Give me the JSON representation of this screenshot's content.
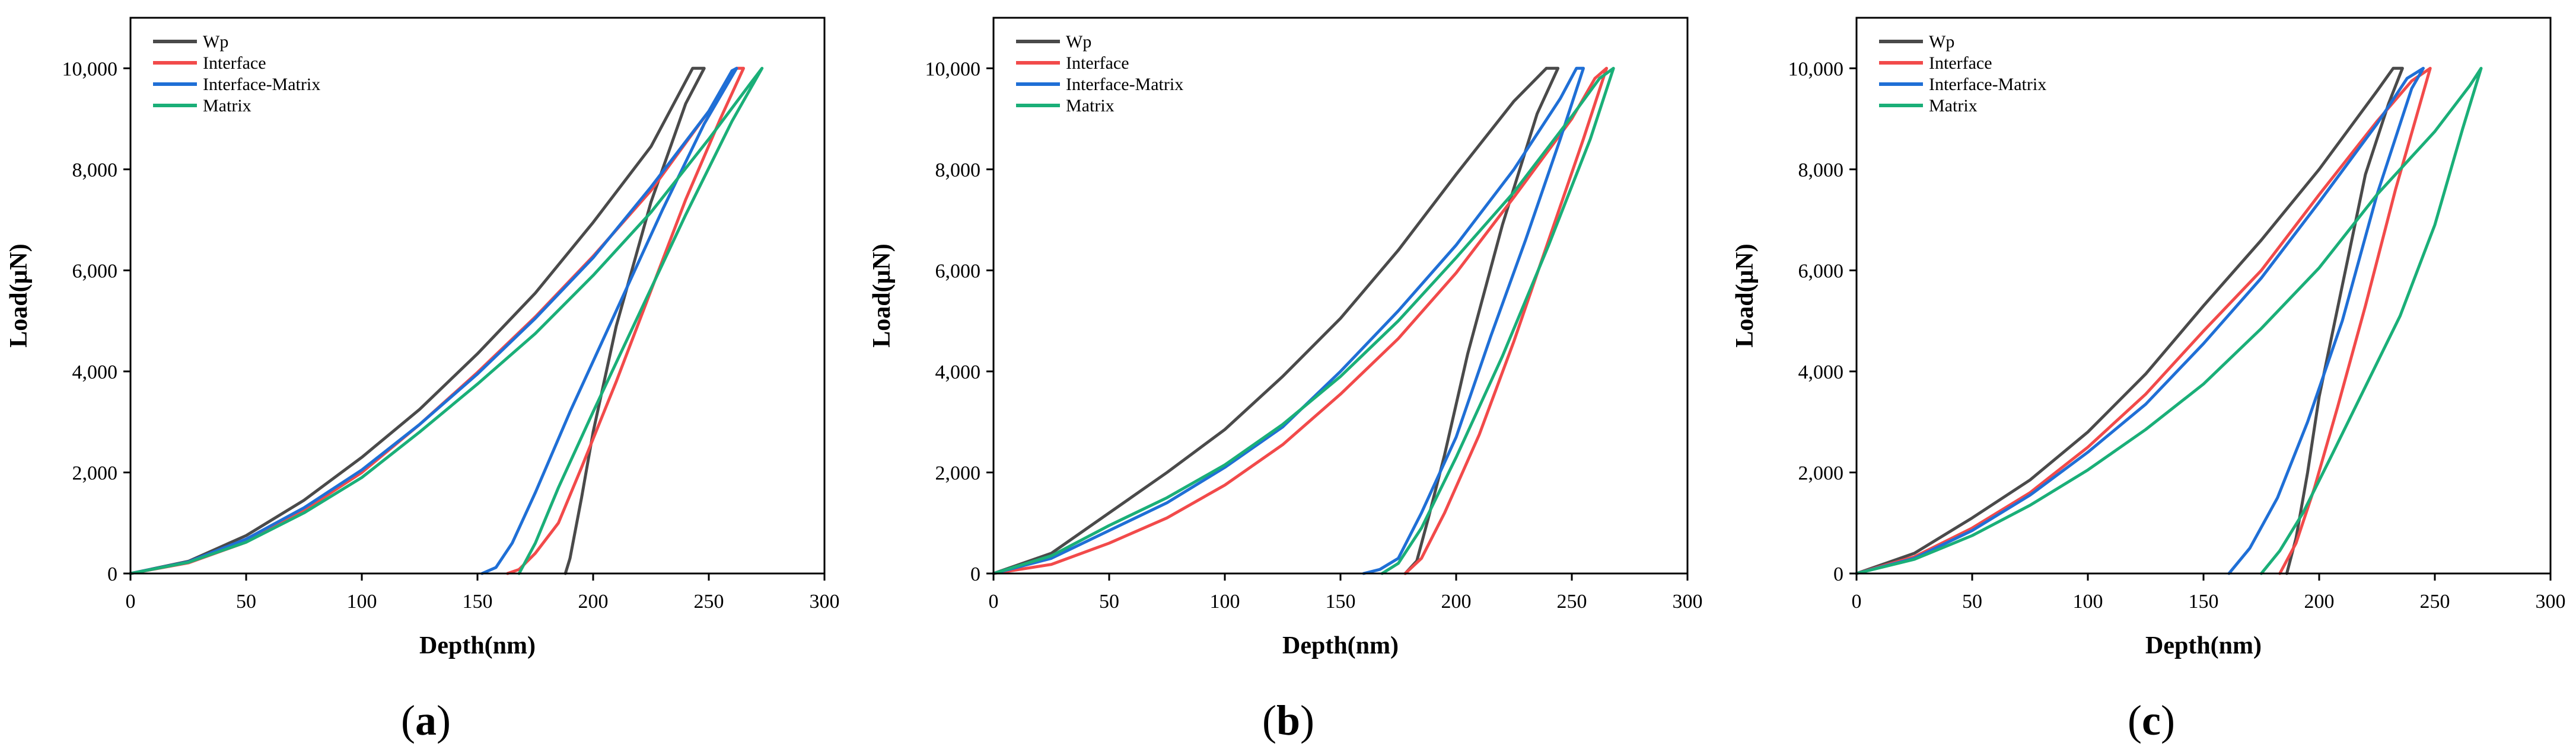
{
  "chart_data": [
    {
      "id": "a",
      "type": "line",
      "caption_open": "(",
      "caption_letter": "a",
      "caption_close": ")",
      "xlabel": "Depth(nm)",
      "ylabel": "Load(μN)",
      "xlim": [
        0,
        300
      ],
      "ylim": [
        0,
        11000
      ],
      "xticks": [
        0,
        50,
        100,
        150,
        200,
        250,
        300
      ],
      "yticks": [
        0,
        2000,
        4000,
        6000,
        8000,
        10000
      ],
      "ytick_labels": [
        "0",
        "2,000",
        "4,000",
        "6,000",
        "8,000",
        "10,000"
      ],
      "legend_position": "top-left",
      "series": [
        {
          "name": "Wp",
          "color": "#4a4a4a",
          "x": [
            0,
            25,
            50,
            75,
            100,
            125,
            150,
            175,
            200,
            225,
            243,
            248,
            240,
            225,
            210,
            200,
            195,
            190,
            188
          ],
          "y": [
            0,
            240,
            750,
            1450,
            2300,
            3250,
            4350,
            5550,
            6950,
            8450,
            10000,
            10000,
            9300,
            7350,
            4900,
            2800,
            1500,
            300,
            0
          ]
        },
        {
          "name": "Interface",
          "color": "#f24a4a",
          "x": [
            0,
            25,
            50,
            75,
            100,
            125,
            150,
            175,
            200,
            225,
            250,
            262,
            265,
            255,
            240,
            225,
            210,
            195,
            185,
            175,
            168,
            163
          ],
          "y": [
            0,
            210,
            620,
            1250,
            2000,
            2950,
            3980,
            5080,
            6280,
            7580,
            9150,
            10000,
            10000,
            9000,
            7400,
            5600,
            3800,
            2100,
            1000,
            400,
            80,
            0
          ]
        },
        {
          "name": "Interface-Matrix",
          "color": "#1f6fd6",
          "x": [
            0,
            25,
            50,
            75,
            100,
            125,
            150,
            175,
            200,
            225,
            250,
            260,
            262,
            248,
            230,
            210,
            190,
            175,
            165,
            158,
            152
          ],
          "y": [
            0,
            230,
            680,
            1300,
            2050,
            2950,
            3950,
            5050,
            6250,
            7650,
            9150,
            9950,
            10000,
            8900,
            7200,
            5200,
            3200,
            1600,
            600,
            120,
            0
          ]
        },
        {
          "name": "Matrix",
          "color": "#1aaf78",
          "x": [
            0,
            25,
            50,
            75,
            100,
            125,
            150,
            175,
            200,
            225,
            250,
            268,
            273,
            260,
            240,
            220,
            200,
            185,
            175,
            168
          ],
          "y": [
            0,
            220,
            620,
            1200,
            1900,
            2800,
            3750,
            4750,
            5900,
            7150,
            8600,
            9700,
            10000,
            8950,
            7100,
            5150,
            3200,
            1700,
            600,
            0
          ]
        }
      ]
    },
    {
      "id": "b",
      "type": "line",
      "caption_open": "(",
      "caption_letter": "b",
      "caption_close": ")",
      "xlabel": "Depth(nm)",
      "ylabel": "Load(μN)",
      "xlim": [
        0,
        300
      ],
      "ylim": [
        0,
        11000
      ],
      "xticks": [
        0,
        50,
        100,
        150,
        200,
        250,
        300
      ],
      "yticks": [
        0,
        2000,
        4000,
        6000,
        8000,
        10000
      ],
      "ytick_labels": [
        "0",
        "2,000",
        "4,000",
        "6,000",
        "8,000",
        "10,000"
      ],
      "legend_position": "top-left",
      "series": [
        {
          "name": "Wp",
          "color": "#4a4a4a",
          "x": [
            0,
            25,
            50,
            75,
            100,
            125,
            150,
            175,
            200,
            225,
            239,
            244,
            235,
            220,
            205,
            195,
            188,
            183,
            178
          ],
          "y": [
            0,
            400,
            1200,
            2000,
            2850,
            3900,
            5050,
            6400,
            7900,
            9350,
            10000,
            10000,
            9100,
            6900,
            4350,
            2350,
            1100,
            250,
            0
          ]
        },
        {
          "name": "Interface",
          "color": "#f24a4a",
          "x": [
            0,
            25,
            50,
            75,
            100,
            125,
            150,
            175,
            200,
            225,
            250,
            260,
            265,
            255,
            240,
            225,
            210,
            195,
            185,
            178
          ],
          "y": [
            0,
            180,
            600,
            1100,
            1750,
            2550,
            3550,
            4650,
            5950,
            7450,
            9000,
            9800,
            10000,
            8600,
            6600,
            4600,
            2750,
            1200,
            300,
            0
          ]
        },
        {
          "name": "Interface-Matrix",
          "color": "#1f6fd6",
          "x": [
            0,
            25,
            50,
            75,
            100,
            125,
            150,
            175,
            200,
            225,
            245,
            252,
            255,
            245,
            230,
            215,
            200,
            185,
            175,
            167,
            160
          ],
          "y": [
            0,
            300,
            850,
            1400,
            2100,
            2900,
            4000,
            5200,
            6500,
            8000,
            9400,
            10000,
            10000,
            8600,
            6600,
            4700,
            2700,
            1200,
            300,
            80,
            0
          ]
        },
        {
          "name": "Matrix",
          "color": "#1aaf78",
          "x": [
            0,
            25,
            50,
            75,
            100,
            125,
            150,
            175,
            200,
            225,
            250,
            262,
            268,
            258,
            240,
            220,
            200,
            185,
            175,
            168
          ],
          "y": [
            0,
            350,
            950,
            1500,
            2150,
            2950,
            3900,
            5000,
            6250,
            7550,
            9050,
            9800,
            10000,
            8600,
            6500,
            4300,
            2300,
            900,
            200,
            0
          ]
        }
      ]
    },
    {
      "id": "c",
      "type": "line",
      "caption_open": "(",
      "caption_letter": "c",
      "caption_close": ")",
      "xlabel": "Depth(nm)",
      "ylabel": "Load(μN)",
      "xlim": [
        0,
        300
      ],
      "ylim": [
        0,
        11000
      ],
      "xticks": [
        0,
        50,
        100,
        150,
        200,
        250,
        300
      ],
      "yticks": [
        0,
        2000,
        4000,
        6000,
        8000,
        10000
      ],
      "ytick_labels": [
        "0",
        "2,000",
        "4,000",
        "6,000",
        "8,000",
        "10,000"
      ],
      "legend_position": "top-left",
      "series": [
        {
          "name": "Wp",
          "color": "#4a4a4a",
          "x": [
            0,
            25,
            50,
            75,
            100,
            125,
            150,
            175,
            200,
            225,
            232,
            236,
            230,
            220,
            210,
            200,
            195,
            190,
            186
          ],
          "y": [
            0,
            400,
            1100,
            1850,
            2800,
            3950,
            5300,
            6600,
            8000,
            9550,
            10000,
            10000,
            9300,
            7900,
            5700,
            3500,
            2000,
            700,
            0
          ]
        },
        {
          "name": "Interface",
          "color": "#f24a4a",
          "x": [
            0,
            25,
            50,
            75,
            100,
            125,
            150,
            175,
            200,
            225,
            240,
            248,
            243,
            233,
            220,
            208,
            198,
            190,
            183
          ],
          "y": [
            0,
            330,
            900,
            1600,
            2500,
            3550,
            4800,
            6000,
            7500,
            8950,
            9750,
            10000,
            9200,
            7600,
            5300,
            3300,
            1700,
            600,
            0
          ]
        },
        {
          "name": "Interface-Matrix",
          "color": "#1f6fd6",
          "x": [
            0,
            25,
            50,
            75,
            100,
            125,
            150,
            175,
            200,
            225,
            238,
            245,
            240,
            225,
            210,
            195,
            182,
            170,
            161
          ],
          "y": [
            0,
            300,
            850,
            1550,
            2400,
            3350,
            4550,
            5850,
            7350,
            8900,
            9800,
            10000,
            9600,
            7500,
            5000,
            3000,
            1500,
            500,
            0
          ]
        },
        {
          "name": "Matrix",
          "color": "#1aaf78",
          "x": [
            0,
            25,
            50,
            75,
            100,
            125,
            150,
            175,
            200,
            225,
            250,
            265,
            270,
            262,
            250,
            235,
            220,
            205,
            193,
            183,
            175
          ],
          "y": [
            0,
            280,
            750,
            1350,
            2050,
            2850,
            3750,
            4850,
            6050,
            7500,
            8750,
            9650,
            10000,
            8800,
            6900,
            5100,
            3700,
            2300,
            1200,
            450,
            0
          ]
        }
      ]
    }
  ]
}
